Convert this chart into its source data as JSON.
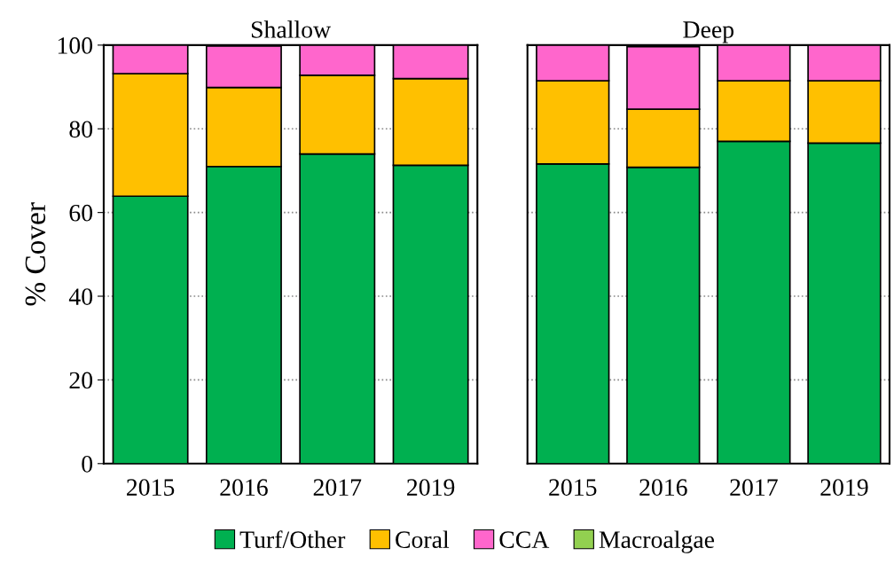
{
  "chart_data": [
    {
      "type": "bar",
      "title": "Shallow",
      "ylabel": "% Cover",
      "stacked": true,
      "categories": [
        "2015",
        "2016",
        "2017",
        "2019"
      ],
      "ylim": [
        0,
        100
      ],
      "yticks": [
        0,
        20,
        40,
        60,
        80,
        100
      ],
      "grid": "y",
      "legend": "bottom",
      "series": [
        {
          "name": "Turf/Other",
          "color": "#00b050",
          "values": [
            63.9,
            71.0,
            74.0,
            71.3
          ]
        },
        {
          "name": "Coral",
          "color": "#ffc000",
          "values": [
            29.3,
            18.9,
            18.8,
            20.7
          ]
        },
        {
          "name": "CCA",
          "color": "#ff66cc",
          "values": [
            6.8,
            9.9,
            7.2,
            8.0
          ]
        },
        {
          "name": "Macroalgae",
          "color": "#92d050",
          "values": [
            null,
            null,
            null,
            null
          ]
        }
      ]
    },
    {
      "type": "bar",
      "title": "Deep",
      "stacked": true,
      "categories": [
        "2015",
        "2016",
        "2017",
        "2019"
      ],
      "ylim": [
        0,
        100
      ],
      "yticks": [
        0,
        20,
        40,
        60,
        80,
        100
      ],
      "grid": "y",
      "tick_labels": "x",
      "series": [
        {
          "color": "#00b050",
          "values": [
            71.6,
            70.8,
            77.0,
            76.6
          ]
        },
        {
          "color": "#ffc000",
          "values": [
            19.9,
            13.9,
            14.5,
            14.9
          ]
        },
        {
          "color": "#ff66cc",
          "values": [
            8.5,
            14.9,
            8.5,
            8.5
          ]
        }
      ]
    }
  ]
}
